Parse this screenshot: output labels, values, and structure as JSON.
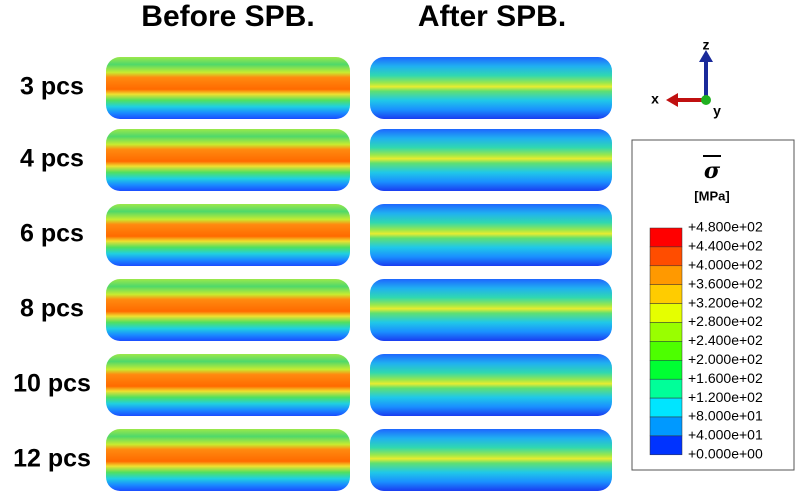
{
  "columns": [
    "Before SPB.",
    "After SPB."
  ],
  "rows": [
    "3 pcs",
    "4 pcs",
    "6 pcs",
    "8 pcs",
    "10 pcs",
    "12 pcs"
  ],
  "triad": {
    "x": "x",
    "y": "y",
    "z": "z"
  },
  "legend": {
    "title": "σ",
    "unit": "[MPa]",
    "labels": [
      "+4.800e+02",
      "+4.400e+02",
      "+4.000e+02",
      "+3.600e+02",
      "+3.200e+02",
      "+2.800e+02",
      "+2.400e+02",
      "+2.000e+02",
      "+1.600e+02",
      "+1.200e+02",
      "+8.000e+01",
      "+4.000e+01",
      "+0.000e+00"
    ],
    "colors": [
      "#ff0000",
      "#ff4d00",
      "#ff9900",
      "#ffcc00",
      "#e5ff00",
      "#99ff00",
      "#4dff00",
      "#00ff33",
      "#00ff99",
      "#00e5ff",
      "#0099ff",
      "#0033ff"
    ]
  }
}
